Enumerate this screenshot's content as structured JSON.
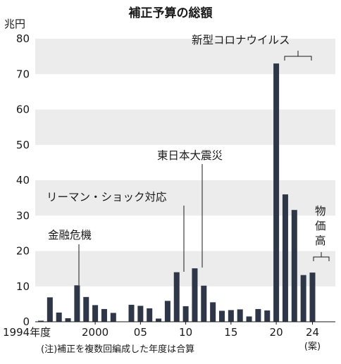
{
  "chart_data": {
    "type": "bar",
    "title": "補正予算の総額",
    "unit_label": "兆円",
    "ylim": [
      0,
      80
    ],
    "yticks": [
      0,
      10,
      20,
      30,
      40,
      50,
      60,
      70,
      80
    ],
    "grid_bands": true,
    "bar_color": "#2d3748",
    "band_color": "#ececec",
    "categories": [
      1994,
      1995,
      1996,
      1997,
      1998,
      1999,
      2000,
      2001,
      2002,
      2003,
      2004,
      2005,
      2006,
      2007,
      2008,
      2009,
      2010,
      2011,
      2012,
      2013,
      2014,
      2015,
      2016,
      2017,
      2018,
      2019,
      2020,
      2021,
      2022,
      2023,
      2024
    ],
    "values": [
      0.3,
      6.9,
      2.6,
      1.0,
      10.3,
      7.0,
      4.7,
      3.6,
      2.5,
      0,
      4.8,
      4.5,
      3.8,
      0.9,
      5.9,
      14.0,
      4.4,
      15.1,
      10.2,
      5.5,
      3.1,
      3.3,
      3.5,
      1.5,
      3.6,
      3.2,
      73.0,
      36.0,
      31.6,
      13.2,
      13.9
    ],
    "x_tick_labels": [
      {
        "label": "1994年度",
        "year": 1994
      },
      {
        "label": "2000",
        "year": 2000
      },
      {
        "label": "05",
        "year": 2005
      },
      {
        "label": "10",
        "year": 2010
      },
      {
        "label": "15",
        "year": 2015
      },
      {
        "label": "20",
        "year": 2020
      },
      {
        "label": "24",
        "year": 2024
      }
    ],
    "x_tick_suffix": "(案)",
    "note": "(注)補正を複数回編成した年度は合算",
    "annotations": {
      "kinyu": "金融危機",
      "lehman": "リーマン・ショック対応",
      "shinsai": "東日本大震災",
      "corona": "新型コロナウイルス",
      "bukka": [
        "物",
        "価",
        "高"
      ]
    }
  }
}
